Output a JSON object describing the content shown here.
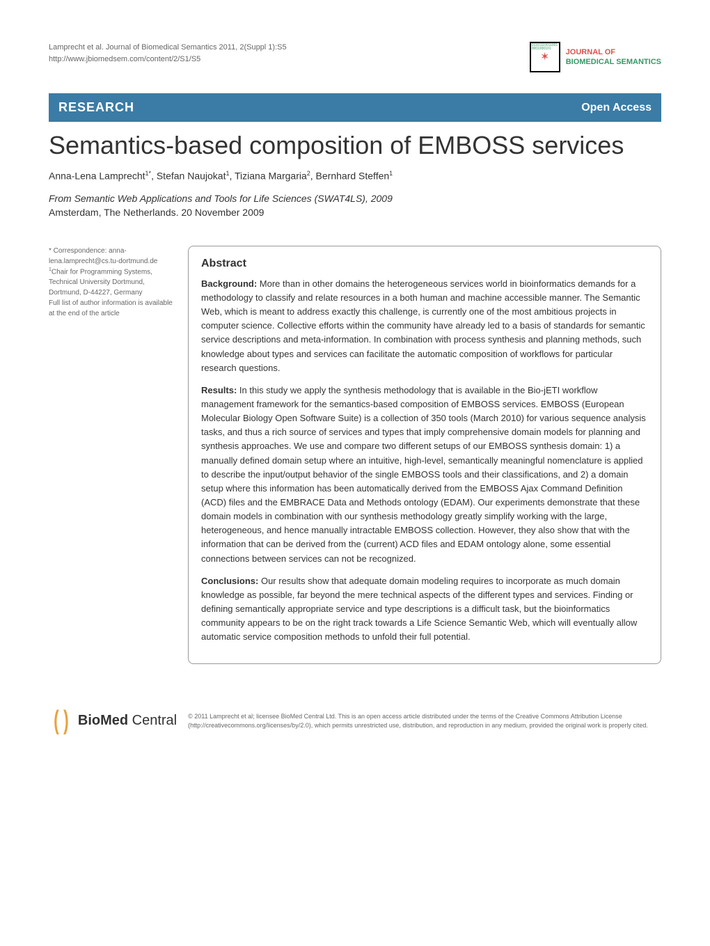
{
  "header": {
    "citation_line1": "Lamprecht et al. Journal of Biomedical Semantics 2011, 2(Suppl 1):S5",
    "citation_line2": "http://www.jbiomedsem.com/content/2/S1/S5",
    "journal_name_1": "JOURNAL OF",
    "journal_name_2": "BIOMEDICAL SEMANTICS"
  },
  "research_bar": {
    "left": "RESEARCH",
    "right": "Open Access"
  },
  "title": "Semantics-based composition of EMBOSS services",
  "authors_html": {
    "a1": "Anna-Lena Lamprecht",
    "a1_sup": "1*",
    "a2": ", Stefan Naujokat",
    "a2_sup": "1",
    "a3": ", Tiziana Margaria",
    "a3_sup": "2",
    "a4": ", Bernhard Steffen",
    "a4_sup": "1"
  },
  "conference": {
    "from_label": "From",
    "name": "Semantic Web Applications and Tools for Life Sciences (SWAT4LS), 2009",
    "location": "Amsterdam, The Netherlands. 20 November 2009"
  },
  "sidebar": {
    "corr_label": "* Correspondence: ",
    "corr_email": "anna-lena.lamprecht@cs.tu-dortmund.de",
    "affil_sup": "1",
    "affil": "Chair for Programming Systems, Technical University Dortmund, Dortmund, D-44227, Germany",
    "note": "Full list of author information is available at the end of the article"
  },
  "abstract": {
    "heading": "Abstract",
    "background_label": "Background:",
    "background_text": " More than in other domains the heterogeneous services world in bioinformatics demands for a methodology to classify and relate resources in a both human and machine accessible manner. The Semantic Web, which is meant to address exactly this challenge, is currently one of the most ambitious projects in computer science. Collective efforts within the community have already led to a basis of standards for semantic service descriptions and meta-information. In combination with process synthesis and planning methods, such knowledge about types and services can facilitate the automatic composition of workflows for particular research questions.",
    "results_label": "Results:",
    "results_text": " In this study we apply the synthesis methodology that is available in the Bio-jETI workflow management framework for the semantics-based composition of EMBOSS services. EMBOSS (European Molecular Biology Open Software Suite) is a collection of 350 tools (March 2010) for various sequence analysis tasks, and thus a rich source of services and types that imply comprehensive domain models for planning and synthesis approaches. We use and compare two different setups of our EMBOSS synthesis domain: 1) a manually defined domain setup where an intuitive, high-level, semantically meaningful nomenclature is applied to describe the input/output behavior of the single EMBOSS tools and their classifications, and 2) a domain setup where this information has been automatically derived from the EMBOSS Ajax Command Definition (ACD) files and the EMBRACE Data and Methods ontology (EDAM). Our experiments demonstrate that these domain models in combination with our synthesis methodology greatly simplify working with the large, heterogeneous, and hence manually intractable EMBOSS collection. However, they also show that with the information that can be derived from the (current) ACD files and EDAM ontology alone, some essential connections between services can not be recognized.",
    "conclusions_label": "Conclusions:",
    "conclusions_text": " Our results show that adequate domain modeling requires to incorporate as much domain knowledge as possible, far beyond the mere technical aspects of the different types and services. Finding or defining semantically appropriate service and type descriptions is a difficult task, but the bioinformatics community appears to be on the right track towards a Life Science Semantic Web, which will eventually allow automatic service composition methods to unfold their full potential."
  },
  "footer": {
    "bmc_bold": "BioMed",
    "bmc_rest": " Central",
    "copyright": "© 2011 Lamprecht et al; licensee BioMed Central Ltd. This is an open access article distributed under the terms of the Creative Commons Attribution License (http://creativecommons.org/licenses/by/2.0), which permits unrestricted use, distribution, and reproduction in any medium, provided the original work is properly cited."
  },
  "colors": {
    "bar_bg": "#3a7ca5",
    "journal_red": "#d9534f",
    "journal_green": "#339966",
    "bmc_orange": "#e8a33d"
  }
}
